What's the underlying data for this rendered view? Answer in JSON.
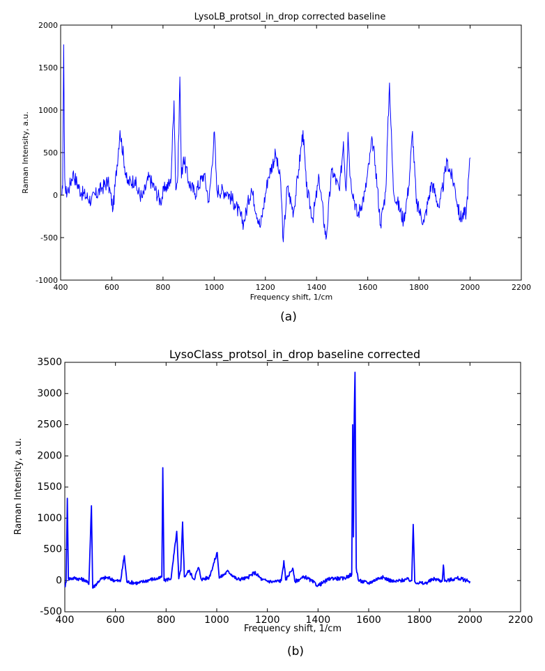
{
  "chart_data": [
    {
      "type": "line",
      "title": "LysoLB_protsol_in_drop corrected baseline",
      "xlabel": "Frequency shift, 1/cm",
      "ylabel": "Raman Intensity, a.u.",
      "xlim": [
        400,
        2200
      ],
      "ylim": [
        -1000,
        2000
      ],
      "xticks": [
        "400",
        "600",
        "800",
        "1000",
        "1200",
        "1400",
        "1600",
        "1800",
        "2000",
        "2200"
      ],
      "yticks": [
        "-1000",
        "-500",
        "0",
        "500",
        "1000",
        "1500",
        "2000"
      ],
      "caption": "(a)",
      "grid": false,
      "color": "#0000ff",
      "peaks": [
        {
          "x": 405,
          "y": 0
        },
        {
          "x": 408,
          "y": 80
        },
        {
          "x": 412,
          "y": 1770
        },
        {
          "x": 416,
          "y": 200
        },
        {
          "x": 420,
          "y": 20
        },
        {
          "x": 435,
          "y": 100
        },
        {
          "x": 448,
          "y": 260
        },
        {
          "x": 480,
          "y": 30
        },
        {
          "x": 520,
          "y": -60
        },
        {
          "x": 560,
          "y": 80
        },
        {
          "x": 585,
          "y": 160
        },
        {
          "x": 605,
          "y": -160
        },
        {
          "x": 632,
          "y": 760
        },
        {
          "x": 660,
          "y": 140
        },
        {
          "x": 690,
          "y": 180
        },
        {
          "x": 700,
          "y": 50
        },
        {
          "x": 720,
          "y": -30
        },
        {
          "x": 745,
          "y": 210
        },
        {
          "x": 770,
          "y": 60
        },
        {
          "x": 790,
          "y": -70
        },
        {
          "x": 810,
          "y": 100
        },
        {
          "x": 830,
          "y": 140
        },
        {
          "x": 843,
          "y": 1110
        },
        {
          "x": 850,
          "y": 60
        },
        {
          "x": 858,
          "y": 230
        },
        {
          "x": 866,
          "y": 1390
        },
        {
          "x": 872,
          "y": 200
        },
        {
          "x": 880,
          "y": 450
        },
        {
          "x": 900,
          "y": 160
        },
        {
          "x": 925,
          "y": 20
        },
        {
          "x": 960,
          "y": 250
        },
        {
          "x": 980,
          "y": -80
        },
        {
          "x": 1001,
          "y": 745
        },
        {
          "x": 1010,
          "y": 60
        },
        {
          "x": 1050,
          "y": 40
        },
        {
          "x": 1080,
          "y": -100
        },
        {
          "x": 1115,
          "y": -330
        },
        {
          "x": 1145,
          "y": 80
        },
        {
          "x": 1180,
          "y": -380
        },
        {
          "x": 1210,
          "y": 200
        },
        {
          "x": 1240,
          "y": 480
        },
        {
          "x": 1260,
          "y": 150
        },
        {
          "x": 1270,
          "y": -550
        },
        {
          "x": 1285,
          "y": 100
        },
        {
          "x": 1310,
          "y": -200
        },
        {
          "x": 1330,
          "y": 300
        },
        {
          "x": 1347,
          "y": 760
        },
        {
          "x": 1360,
          "y": 100
        },
        {
          "x": 1385,
          "y": -280
        },
        {
          "x": 1410,
          "y": 200
        },
        {
          "x": 1437,
          "y": -520
        },
        {
          "x": 1460,
          "y": 300
        },
        {
          "x": 1490,
          "y": 50
        },
        {
          "x": 1505,
          "y": 630
        },
        {
          "x": 1515,
          "y": 50
        },
        {
          "x": 1523,
          "y": 740
        },
        {
          "x": 1532,
          "y": 200
        },
        {
          "x": 1560,
          "y": -250
        },
        {
          "x": 1590,
          "y": 40
        },
        {
          "x": 1618,
          "y": 650
        },
        {
          "x": 1630,
          "y": 350
        },
        {
          "x": 1650,
          "y": -350
        },
        {
          "x": 1670,
          "y": 40
        },
        {
          "x": 1685,
          "y": 1320
        },
        {
          "x": 1700,
          "y": 60
        },
        {
          "x": 1740,
          "y": -300
        },
        {
          "x": 1760,
          "y": 100
        },
        {
          "x": 1775,
          "y": 750
        },
        {
          "x": 1790,
          "y": -100
        },
        {
          "x": 1820,
          "y": -320
        },
        {
          "x": 1850,
          "y": 150
        },
        {
          "x": 1880,
          "y": -150
        },
        {
          "x": 1910,
          "y": 400
        },
        {
          "x": 1940,
          "y": 100
        },
        {
          "x": 1960,
          "y": -270
        },
        {
          "x": 1985,
          "y": -200
        },
        {
          "x": 2000,
          "y": 440
        }
      ]
    },
    {
      "type": "line",
      "title": "LysoClass_protsol_in_drop baseline corrected",
      "xlabel": "Frequency shift, 1/cm",
      "ylabel": "Raman Intensity, a.u.",
      "xlim": [
        400,
        2200
      ],
      "ylim": [
        -500,
        3500
      ],
      "xticks": [
        "400",
        "600",
        "800",
        "1000",
        "1200",
        "1400",
        "1600",
        "1800",
        "2000",
        "2200"
      ],
      "yticks": [
        "-500",
        "0",
        "500",
        "1000",
        "1500",
        "2000",
        "2500",
        "3000",
        "3500"
      ],
      "caption": "(b)",
      "grid": false,
      "color": "#0000ff",
      "peaks": [
        {
          "x": 400,
          "y": -100
        },
        {
          "x": 405,
          "y": -30
        },
        {
          "x": 410,
          "y": 1320
        },
        {
          "x": 414,
          "y": 30
        },
        {
          "x": 440,
          "y": 40
        },
        {
          "x": 480,
          "y": 10
        },
        {
          "x": 495,
          "y": -60
        },
        {
          "x": 505,
          "y": 1200
        },
        {
          "x": 510,
          "y": -120
        },
        {
          "x": 540,
          "y": 20
        },
        {
          "x": 565,
          "y": 50
        },
        {
          "x": 600,
          "y": 0
        },
        {
          "x": 620,
          "y": -10
        },
        {
          "x": 635,
          "y": 400
        },
        {
          "x": 645,
          "y": -20
        },
        {
          "x": 690,
          "y": -40
        },
        {
          "x": 740,
          "y": 20
        },
        {
          "x": 770,
          "y": 30
        },
        {
          "x": 783,
          "y": 60
        },
        {
          "x": 787,
          "y": 1810
        },
        {
          "x": 792,
          "y": 0
        },
        {
          "x": 820,
          "y": 40
        },
        {
          "x": 842,
          "y": 790
        },
        {
          "x": 850,
          "y": 30
        },
        {
          "x": 858,
          "y": 160
        },
        {
          "x": 865,
          "y": 940
        },
        {
          "x": 872,
          "y": 60
        },
        {
          "x": 890,
          "y": 160
        },
        {
          "x": 910,
          "y": 20
        },
        {
          "x": 928,
          "y": 210
        },
        {
          "x": 940,
          "y": 20
        },
        {
          "x": 970,
          "y": 50
        },
        {
          "x": 1002,
          "y": 450
        },
        {
          "x": 1010,
          "y": 40
        },
        {
          "x": 1045,
          "y": 150
        },
        {
          "x": 1080,
          "y": 20
        },
        {
          "x": 1120,
          "y": 40
        },
        {
          "x": 1150,
          "y": 130
        },
        {
          "x": 1180,
          "y": 10
        },
        {
          "x": 1220,
          "y": -20
        },
        {
          "x": 1255,
          "y": 0
        },
        {
          "x": 1265,
          "y": 320
        },
        {
          "x": 1272,
          "y": 10
        },
        {
          "x": 1300,
          "y": 200
        },
        {
          "x": 1308,
          "y": -10
        },
        {
          "x": 1350,
          "y": 60
        },
        {
          "x": 1400,
          "y": -80
        },
        {
          "x": 1450,
          "y": 40
        },
        {
          "x": 1500,
          "y": 30
        },
        {
          "x": 1533,
          "y": 100
        },
        {
          "x": 1537,
          "y": 2500
        },
        {
          "x": 1540,
          "y": 700
        },
        {
          "x": 1543,
          "y": 2650
        },
        {
          "x": 1546,
          "y": 3340
        },
        {
          "x": 1551,
          "y": 200
        },
        {
          "x": 1560,
          "y": 0
        },
        {
          "x": 1600,
          "y": -40
        },
        {
          "x": 1650,
          "y": 60
        },
        {
          "x": 1700,
          "y": -20
        },
        {
          "x": 1750,
          "y": 20
        },
        {
          "x": 1770,
          "y": 0
        },
        {
          "x": 1776,
          "y": 900
        },
        {
          "x": 1782,
          "y": -20
        },
        {
          "x": 1820,
          "y": -50
        },
        {
          "x": 1860,
          "y": 30
        },
        {
          "x": 1890,
          "y": -10
        },
        {
          "x": 1895,
          "y": 250
        },
        {
          "x": 1900,
          "y": -10
        },
        {
          "x": 1950,
          "y": 40
        },
        {
          "x": 2000,
          "y": -10
        }
      ]
    }
  ]
}
